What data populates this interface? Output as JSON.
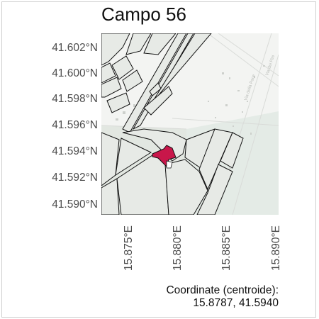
{
  "title": "Campo 56",
  "y_axis_labels": [
    "41.602°N",
    "41.600°N",
    "41.598°N",
    "41.596°N",
    "41.594°N",
    "41.592°N",
    "41.590°N"
  ],
  "x_axis_labels": [
    "15.875°E",
    "15.880°E",
    "15.885°E",
    "15.890°E"
  ],
  "caption": {
    "line1": "Coordinate (centroide):",
    "line2": "15.8787, 41.5940"
  },
  "map": {
    "road_label_1": "Via della Pace",
    "road_label_2": "Via dei Pini",
    "road_label_3": "Strada Cervaro",
    "highlight_color": "#c8174a",
    "parcel_fill": "#e7eae6",
    "base_fill": "#f3f4f2",
    "field_fill": "#e4ebe6"
  }
}
